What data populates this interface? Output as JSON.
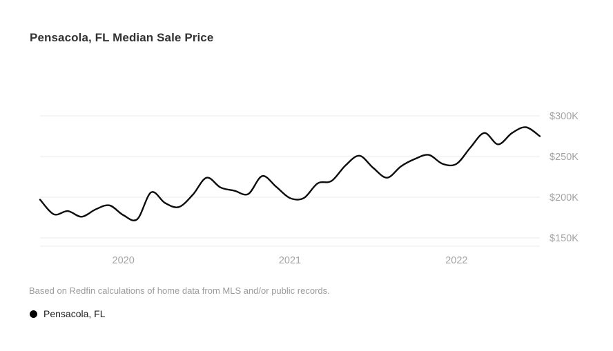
{
  "header": {
    "title": "Pensacola, FL Median Sale Price"
  },
  "footnote": {
    "text": "Based on Redfin calculations of home data from MLS and/or public records."
  },
  "legend": {
    "items": [
      {
        "label": "Pensacola, FL",
        "marker_color": "#000000"
      }
    ]
  },
  "chart_data": {
    "type": "line",
    "title": "Pensacola, FL Median Sale Price",
    "xlabel": "",
    "ylabel": "Median Sale Price",
    "grid": "horizontal",
    "legend_position": "bottom-left",
    "gridline_color": "#ebebeb",
    "axis_label_color": "#a3a3a3",
    "ylim": [
      140000,
      310000
    ],
    "x": [
      "Jul 2019",
      "Aug 2019",
      "Sep 2019",
      "Oct 2019",
      "Nov 2019",
      "Dec 2019",
      "Jan 2020",
      "Feb 2020",
      "Mar 2020",
      "Apr 2020",
      "May 2020",
      "Jun 2020",
      "Jul 2020",
      "Aug 2020",
      "Sep 2020",
      "Oct 2020",
      "Nov 2020",
      "Dec 2020",
      "Jan 2021",
      "Feb 2021",
      "Mar 2021",
      "Apr 2021",
      "May 2021",
      "Jun 2021",
      "Jul 2021",
      "Aug 2021",
      "Sep 2021",
      "Oct 2021",
      "Nov 2021",
      "Dec 2021",
      "Jan 2022",
      "Feb 2022",
      "Mar 2022",
      "Apr 2022",
      "May 2022",
      "Jun 2022",
      "Jul 2022"
    ],
    "series": [
      {
        "name": "Pensacola, FL",
        "color": "#0d0d0d",
        "values": [
          197000,
          179000,
          183000,
          176000,
          185000,
          190000,
          178000,
          173000,
          206000,
          193000,
          188000,
          203000,
          224000,
          212000,
          208000,
          204000,
          226000,
          213000,
          199000,
          199000,
          217000,
          220000,
          239000,
          251000,
          236000,
          224000,
          238000,
          247000,
          252000,
          241000,
          241000,
          261000,
          279000,
          265000,
          279000,
          286000,
          275000
        ]
      }
    ],
    "y_ticks": [
      {
        "value": 300000,
        "label": "$300K"
      },
      {
        "value": 250000,
        "label": "$250K"
      },
      {
        "value": 200000,
        "label": "$200K"
      },
      {
        "value": 150000,
        "label": "$150K"
      }
    ],
    "x_ticks": [
      {
        "label": "2020",
        "x_index": 6
      },
      {
        "label": "2021",
        "x_index": 18
      },
      {
        "label": "2022",
        "x_index": 30
      }
    ]
  }
}
